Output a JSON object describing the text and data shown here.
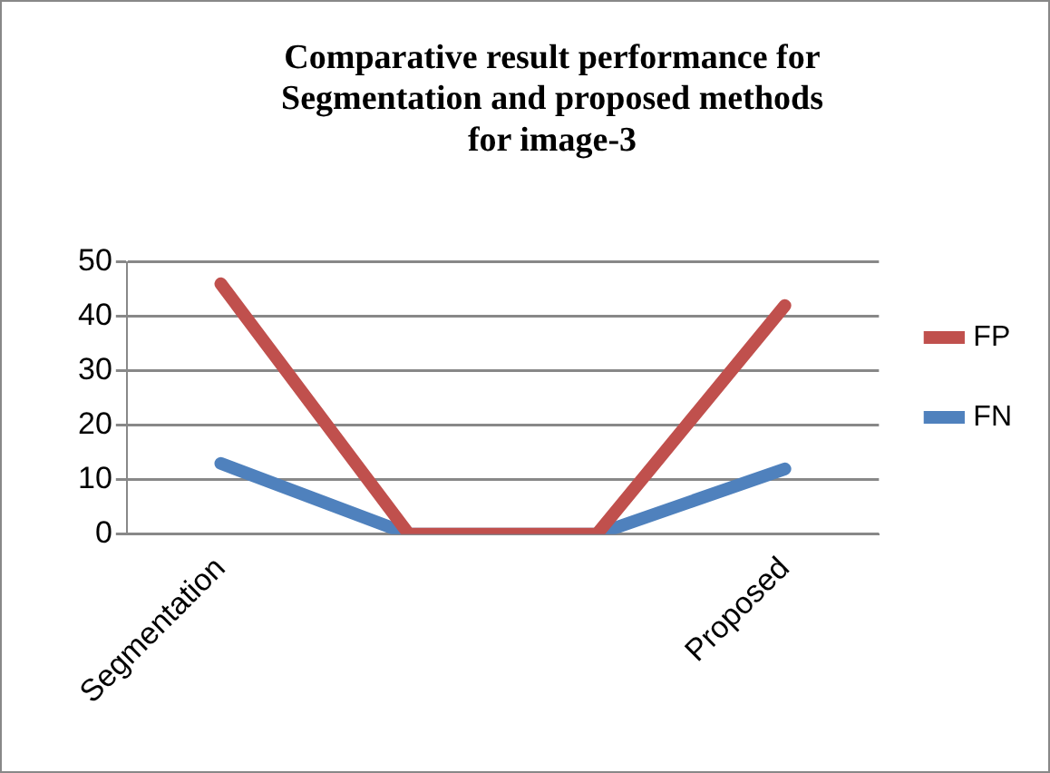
{
  "chart_data": {
    "type": "line",
    "title": "Comparative result performance for\nSegmentation and proposed methods\nfor image-3",
    "categories": [
      "Segmentation",
      null,
      null,
      "Proposed"
    ],
    "series": [
      {
        "name": "FP",
        "color": "#c0504d",
        "values": [
          46,
          0,
          0,
          42
        ]
      },
      {
        "name": "FN",
        "color": "#4f81bd",
        "values": [
          13,
          0,
          0,
          12
        ]
      }
    ],
    "ylim": [
      0,
      50
    ],
    "yticks": [
      0,
      10,
      20,
      30,
      40,
      50
    ],
    "grid": "y",
    "legend": "right",
    "marker": "none"
  }
}
